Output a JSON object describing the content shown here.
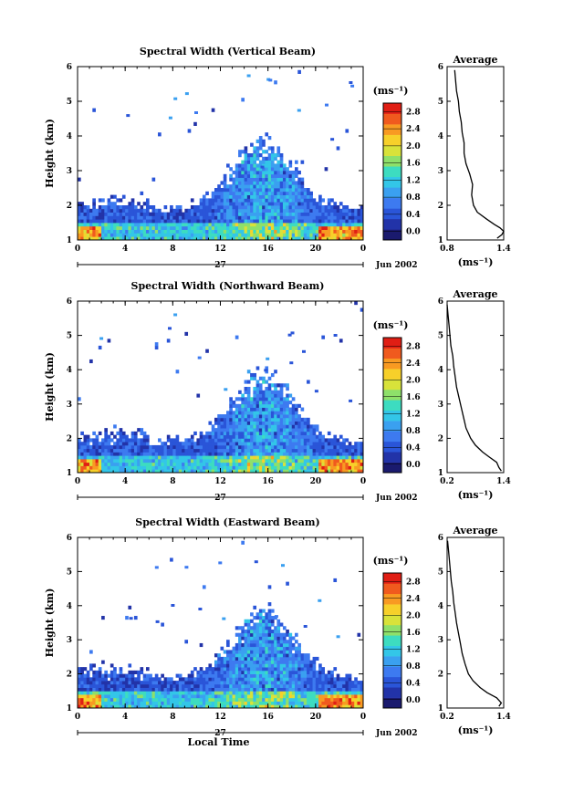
{
  "chart_data": [
    {
      "type": "heatmap",
      "title": "Spectral Width (Vertical Beam)",
      "ylabel": "Height (km)",
      "xlabel": "",
      "x_ticks": [
        "0",
        "4",
        "8",
        "12",
        "16",
        "20",
        "0"
      ],
      "y_ticks": [
        "1",
        "2",
        "3",
        "4",
        "5",
        "6"
      ],
      "xlim": [
        0,
        24
      ],
      "ylim": [
        1,
        6
      ],
      "date_day": "27",
      "date_month": "Jun 2002",
      "colorbar": {
        "unit": "(ms⁻¹)",
        "ticks": [
          "0.0",
          "0.4",
          "0.8",
          "1.2",
          "1.6",
          "2.0",
          "2.4",
          "2.8"
        ],
        "range": [
          -0.2,
          3.0
        ]
      },
      "average": {
        "title": "Average",
        "xlabel": "(ms⁻¹)",
        "x_ticks": [
          "0.8",
          "1.4"
        ],
        "xlim": [
          0.8,
          1.4
        ],
        "y_ticks": [
          "1",
          "2",
          "3",
          "4",
          "5",
          "6"
        ],
        "profile": [
          [
            1.33,
            1.05
          ],
          [
            1.38,
            1.15
          ],
          [
            1.4,
            1.25
          ],
          [
            1.36,
            1.35
          ],
          [
            1.3,
            1.45
          ],
          [
            1.22,
            1.6
          ],
          [
            1.12,
            1.8
          ],
          [
            1.08,
            2.0
          ],
          [
            1.06,
            2.3
          ],
          [
            1.07,
            2.6
          ],
          [
            1.04,
            2.9
          ],
          [
            1.0,
            3.2
          ],
          [
            0.98,
            3.5
          ],
          [
            0.98,
            3.8
          ],
          [
            0.96,
            4.1
          ],
          [
            0.95,
            4.4
          ],
          [
            0.93,
            4.7
          ],
          [
            0.92,
            5.0
          ],
          [
            0.9,
            5.3
          ],
          [
            0.89,
            5.6
          ],
          [
            0.88,
            5.9
          ]
        ]
      }
    },
    {
      "type": "heatmap",
      "title": "Spectral Width (Northward Beam)",
      "ylabel": "Height (km)",
      "xlabel": "",
      "x_ticks": [
        "0",
        "4",
        "8",
        "12",
        "16",
        "20",
        "0"
      ],
      "y_ticks": [
        "1",
        "2",
        "3",
        "4",
        "5",
        "6"
      ],
      "xlim": [
        0,
        24
      ],
      "ylim": [
        1,
        6
      ],
      "date_day": "27",
      "date_month": "Jun 2002",
      "colorbar": {
        "unit": "(ms⁻¹)",
        "ticks": [
          "0.0",
          "0.4",
          "0.8",
          "1.2",
          "1.6",
          "2.0",
          "2.4",
          "2.8"
        ],
        "range": [
          -0.2,
          3.0
        ]
      },
      "average": {
        "title": "Average",
        "xlabel": "(ms⁻¹)",
        "x_ticks": [
          "0.2",
          "1.4"
        ],
        "xlim": [
          0.2,
          1.4
        ],
        "y_ticks": [
          "1",
          "2",
          "3",
          "4",
          "5",
          "6"
        ],
        "profile": [
          [
            1.35,
            1.05
          ],
          [
            1.3,
            1.15
          ],
          [
            1.25,
            1.3
          ],
          [
            1.1,
            1.45
          ],
          [
            0.95,
            1.6
          ],
          [
            0.8,
            1.8
          ],
          [
            0.7,
            2.0
          ],
          [
            0.6,
            2.3
          ],
          [
            0.55,
            2.6
          ],
          [
            0.5,
            2.9
          ],
          [
            0.45,
            3.2
          ],
          [
            0.4,
            3.5
          ],
          [
            0.37,
            3.8
          ],
          [
            0.34,
            4.1
          ],
          [
            0.32,
            4.4
          ],
          [
            0.28,
            4.7
          ],
          [
            0.26,
            5.0
          ],
          [
            0.24,
            5.3
          ],
          [
            0.22,
            5.6
          ],
          [
            0.2,
            5.9
          ]
        ]
      }
    },
    {
      "type": "heatmap",
      "title": "Spectral Width (Eastward Beam)",
      "ylabel": "Height (km)",
      "xlabel": "Local Time",
      "x_ticks": [
        "0",
        "4",
        "8",
        "12",
        "16",
        "20",
        "0"
      ],
      "y_ticks": [
        "1",
        "2",
        "3",
        "4",
        "5",
        "6"
      ],
      "xlim": [
        0,
        24
      ],
      "ylim": [
        1,
        6
      ],
      "date_day": "27",
      "date_month": "Jun 2002",
      "colorbar": {
        "unit": "(ms⁻¹)",
        "ticks": [
          "0.0",
          "0.4",
          "0.8",
          "1.2",
          "1.6",
          "2.0",
          "2.4",
          "2.8"
        ],
        "range": [
          -0.2,
          3.0
        ]
      },
      "average": {
        "title": "Average",
        "xlabel": "(ms⁻¹)",
        "x_ticks": [
          "0.2",
          "1.4"
        ],
        "xlim": [
          0.2,
          1.4
        ],
        "y_ticks": [
          "1",
          "2",
          "3",
          "4",
          "5",
          "6"
        ],
        "profile": [
          [
            1.3,
            1.05
          ],
          [
            1.35,
            1.15
          ],
          [
            1.25,
            1.3
          ],
          [
            1.05,
            1.45
          ],
          [
            0.9,
            1.6
          ],
          [
            0.75,
            1.8
          ],
          [
            0.65,
            2.0
          ],
          [
            0.58,
            2.3
          ],
          [
            0.52,
            2.6
          ],
          [
            0.48,
            2.9
          ],
          [
            0.44,
            3.2
          ],
          [
            0.4,
            3.5
          ],
          [
            0.37,
            3.8
          ],
          [
            0.34,
            4.1
          ],
          [
            0.32,
            4.4
          ],
          [
            0.29,
            4.7
          ],
          [
            0.27,
            5.0
          ],
          [
            0.25,
            5.3
          ],
          [
            0.23,
            5.6
          ],
          [
            0.21,
            5.9
          ]
        ]
      }
    }
  ],
  "colors": {
    "scale": [
      "#1a1a6e",
      "#2233a8",
      "#2a55d8",
      "#3d7af0",
      "#3aa0f0",
      "#33c6e8",
      "#3ddcc0",
      "#8ee06a",
      "#d8e23a",
      "#f7d02a",
      "#f89a22",
      "#f05a1e",
      "#e01e14"
    ]
  }
}
